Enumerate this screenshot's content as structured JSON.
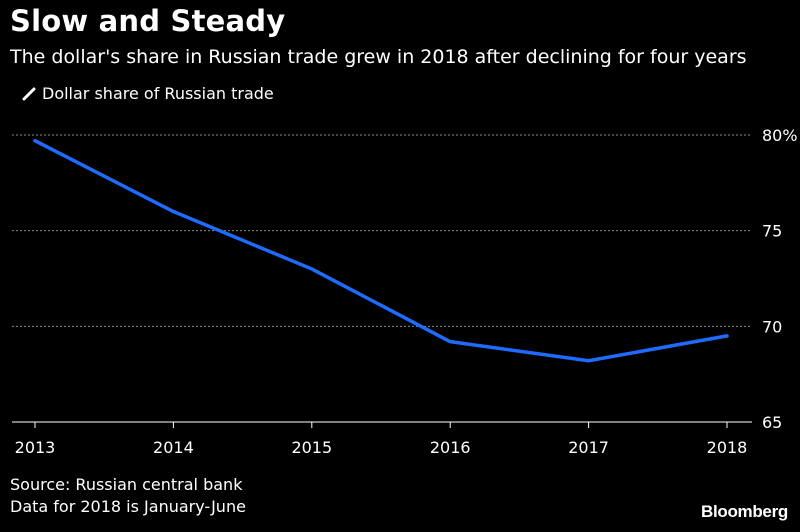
{
  "title": "Slow and Steady",
  "subtitle": "The dollar's share in Russian trade grew in 2018 after declining for four years",
  "legend": {
    "label": "Dollar share of Russian trade",
    "icon": "legend-line-icon"
  },
  "source": {
    "line1": "Source: Russian central bank",
    "line2": "Data for 2018 is January-June"
  },
  "logo": "Bloomberg",
  "colors": {
    "line": "#1f6bff",
    "background": "#000000",
    "grid": "#8a8a8a",
    "text": "#ffffff"
  },
  "chart_data": {
    "type": "line",
    "title": "Slow and Steady",
    "subtitle": "The dollar's share in Russian trade grew in 2018 after declining for four years",
    "x": [
      2013,
      2014,
      2015,
      2016,
      2017,
      2018
    ],
    "series": [
      {
        "name": "Dollar share of Russian trade",
        "values": [
          79.7,
          76.0,
          73.0,
          69.2,
          68.2,
          69.5
        ]
      }
    ],
    "ylim": [
      65,
      80
    ],
    "yticks": [
      80,
      75,
      70,
      65
    ],
    "ytick_labels": [
      "80%",
      "75",
      "70",
      "65"
    ],
    "xtick_labels": [
      "2013",
      "2014",
      "2015",
      "2016",
      "2017",
      "2018"
    ],
    "grid": true,
    "y_axis_side": "right",
    "legend_position": "top-left"
  }
}
